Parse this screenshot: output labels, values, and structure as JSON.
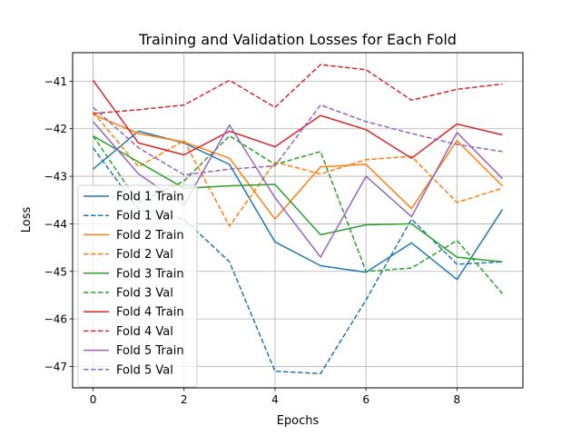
{
  "chart_data": {
    "type": "line",
    "title": "Training and Validation Losses for Each Fold",
    "xlabel": "Epochs",
    "ylabel": "Loss",
    "xlim": [
      -0.45,
      9.45
    ],
    "ylim": [
      -47.45,
      -40.4
    ],
    "xticks": [
      0,
      2,
      4,
      6,
      8
    ],
    "xtick_labels": [
      "0",
      "2",
      "4",
      "6",
      "8"
    ],
    "yticks": [
      -47,
      -46,
      -45,
      -44,
      -43,
      -42,
      -41
    ],
    "ytick_labels": [
      "−47",
      "−46",
      "−45",
      "−44",
      "−43",
      "−42",
      "−41"
    ],
    "grid": true,
    "legend_position": "lower-left",
    "x": [
      0,
      1,
      2,
      3,
      4,
      5,
      6,
      7,
      8,
      9
    ],
    "series": [
      {
        "name": "Fold 1 Train",
        "color": "#1f77b4",
        "dash": "solid",
        "values": [
          -42.85,
          -42.05,
          -42.3,
          -42.75,
          -44.38,
          -44.88,
          -45.02,
          -44.4,
          -45.17,
          -43.7
        ]
      },
      {
        "name": "Fold 1 Val",
        "color": "#1f77b4",
        "dash": "dashed",
        "values": [
          -42.4,
          -43.7,
          -43.9,
          -44.8,
          -47.1,
          -47.15,
          -45.6,
          -43.9,
          -44.85,
          -44.8
        ]
      },
      {
        "name": "Fold 2 Train",
        "color": "#ff7f0e",
        "dash": "solid",
        "values": [
          -41.7,
          -42.1,
          -42.28,
          -42.62,
          -43.9,
          -42.8,
          -42.75,
          -43.68,
          -42.25,
          -43.2
        ]
      },
      {
        "name": "Fold 2 Val",
        "color": "#ff7f0e",
        "dash": "dashed",
        "values": [
          -41.65,
          -42.8,
          -42.25,
          -44.05,
          -42.7,
          -42.95,
          -42.65,
          -42.58,
          -43.55,
          -43.25
        ]
      },
      {
        "name": "Fold 3 Train",
        "color": "#2ca02c",
        "dash": "solid",
        "values": [
          -42.15,
          -42.7,
          -43.25,
          -43.2,
          -43.17,
          -44.23,
          -44.02,
          -44.0,
          -44.7,
          -44.8
        ]
      },
      {
        "name": "Fold 3 Val",
        "color": "#2ca02c",
        "dash": "dashed",
        "values": [
          -42.15,
          -43.55,
          -43.1,
          -42.15,
          -42.75,
          -42.48,
          -45.0,
          -44.93,
          -44.35,
          -45.47
        ]
      },
      {
        "name": "Fold 4 Train",
        "color": "#d62728",
        "dash": "solid",
        "values": [
          -40.98,
          -42.3,
          -42.55,
          -42.05,
          -42.38,
          -41.72,
          -42.02,
          -42.62,
          -41.9,
          -42.13
        ]
      },
      {
        "name": "Fold 4 Val",
        "color": "#d62728",
        "dash": "dashed",
        "values": [
          -41.68,
          -41.6,
          -41.5,
          -40.98,
          -41.55,
          -40.65,
          -40.76,
          -41.4,
          -41.17,
          -41.06
        ]
      },
      {
        "name": "Fold 5 Train",
        "color": "#9467bd",
        "dash": "solid",
        "values": [
          -41.85,
          -42.95,
          -43.6,
          -41.92,
          -43.45,
          -44.7,
          -43.0,
          -43.85,
          -42.08,
          -43.05
        ]
      },
      {
        "name": "Fold 5 Val",
        "color": "#9467bd",
        "dash": "dashed",
        "values": [
          -41.55,
          -42.4,
          -42.97,
          -42.85,
          -42.78,
          -41.5,
          -41.85,
          -42.1,
          -42.33,
          -42.48
        ]
      }
    ]
  }
}
